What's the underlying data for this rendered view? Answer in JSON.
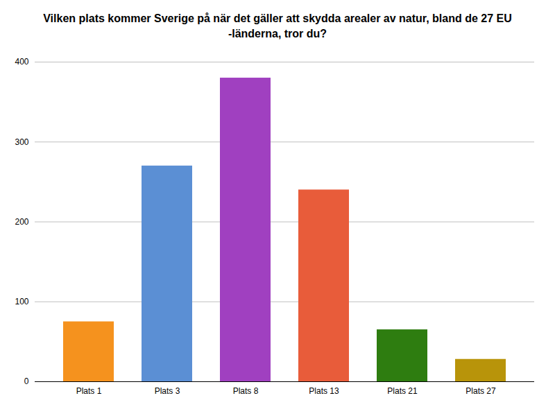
{
  "chart_data": {
    "type": "bar",
    "title": "Vilken plats kommer Sverige på när det gäller att skydda arealer av natur, bland de 27 EU\n-länderna, tror du?",
    "categories": [
      "Plats 1",
      "Plats 3",
      "Plats 8",
      "Plats 13",
      "Plats 21",
      "Plats 27"
    ],
    "values": [
      75,
      270,
      380,
      240,
      65,
      28
    ],
    "colors": [
      "#F5921E",
      "#5B8FD4",
      "#A040C0",
      "#E85C3A",
      "#2E7D10",
      "#B8940A"
    ],
    "ylim": [
      0,
      400
    ],
    "yticks": [
      0,
      100,
      200,
      300,
      400
    ],
    "grid": true
  }
}
